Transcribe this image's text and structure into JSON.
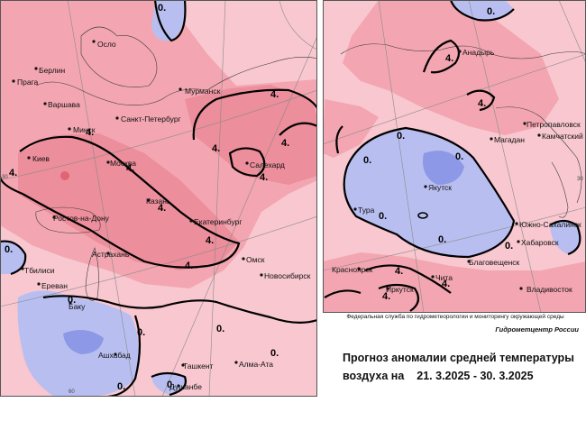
{
  "agency": "Федеральная служба по гидрометеорологии и мониторингу окружающей среды",
  "center": "Гидрометцентр России",
  "title_line1": "Прогноз аномалии средней температуры",
  "title_line2_prefix": "воздуха на",
  "date_range": "21. 3.2025 - 30. 3.2025",
  "colors": {
    "light_pink": "#f8c7cf",
    "pink": "#f3a6b1",
    "dark_pink": "#ec8e9b",
    "hot_spot": "#e06574",
    "light_blue": "#b8bff0",
    "blue": "#8d98e6",
    "dark_blue": "#6f7edd"
  },
  "isotherm_labels": [
    "4.",
    "4.",
    "4.",
    "4.",
    "4.",
    "4.",
    "4.",
    "4.",
    "4.",
    "4.",
    "0.",
    "0.",
    "0.",
    "0.",
    "0.",
    "0.",
    "0.",
    "0.",
    "4.",
    "4.",
    "4.",
    "0.",
    "0.",
    "0.",
    "0.",
    "0.",
    "0.",
    "0.",
    "4.",
    "4."
  ],
  "graticule_labels": [
    "30",
    "60",
    "30"
  ],
  "cities_west": [
    "Осло",
    "Берлин",
    "Прага",
    "Варшава",
    "Мурманск",
    "Санкт-Петербург",
    "Минск",
    "Киев",
    "Москва",
    "Салехард",
    "Казань",
    "Екатеринбург",
    "Ростов-на-Дону",
    "Астрахань",
    "Омск",
    "Новосибирск",
    "Тбилиси",
    "Ереван",
    "Баку",
    "Ашхабад",
    "Ташкент",
    "Алма-Ата",
    "Душанбе"
  ],
  "cities_east": [
    "Анадырь",
    "Петропавловск",
    "Магадан",
    "Камчатский",
    "Якутск",
    "Тура",
    "Южно-Сахалинск",
    "Хабаровск",
    "Благовещенск",
    "Красноярск",
    "Чита",
    "Иркутск",
    "Владивосток"
  ]
}
